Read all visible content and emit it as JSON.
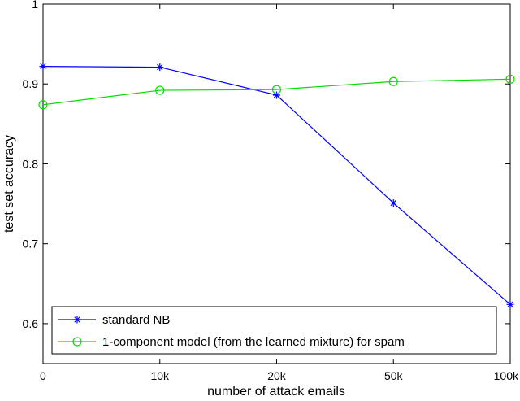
{
  "chart_data": {
    "type": "line",
    "categories": [
      "0",
      "10k",
      "20k",
      "50k",
      "100k"
    ],
    "xlabel": "number of attack emails",
    "ylabel": "test set accuracy",
    "ylim": [
      0.55,
      1.0
    ],
    "yticks": [
      "0.6",
      "0.7",
      "0.8",
      "0.9",
      "1"
    ],
    "ytick_values": [
      0.6,
      0.7,
      0.8,
      0.9,
      1.0
    ],
    "grid": false,
    "legend_position": "bottom-left",
    "series": [
      {
        "name": "standard NB",
        "values": [
          0.922,
          0.921,
          0.886,
          0.751,
          0.624
        ],
        "color": "#0000ff",
        "marker": "star"
      },
      {
        "name": "1-component model (from the learned mixture) for spam",
        "values": [
          0.874,
          0.892,
          0.893,
          0.903,
          0.906
        ],
        "color": "#00dd00",
        "marker": "circle"
      }
    ]
  }
}
